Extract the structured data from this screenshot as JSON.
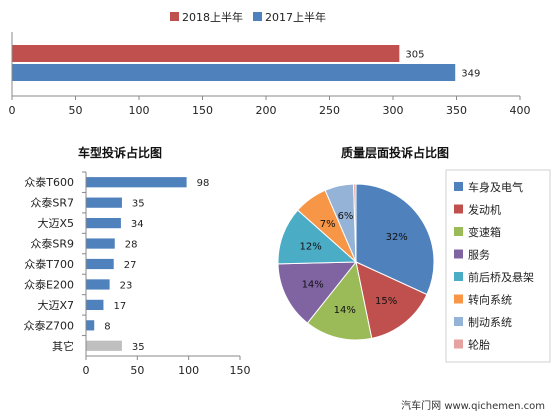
{
  "chart_data": [
    {
      "type": "bar",
      "orientation": "horizontal",
      "title": "",
      "categories": [
        ""
      ],
      "series": [
        {
          "name": "2018上半年",
          "values": [
            305
          ],
          "color": "#c0504d"
        },
        {
          "name": "2017上半年",
          "values": [
            349
          ],
          "color": "#4f81bd"
        }
      ],
      "xlim": [
        0,
        400
      ],
      "xticks": [
        "0",
        "50",
        "100",
        "150",
        "200",
        "250",
        "300",
        "350",
        "400"
      ],
      "legend": "top",
      "grid": false
    },
    {
      "type": "bar",
      "orientation": "horizontal",
      "title": "车型投诉占比图",
      "categories": [
        "众泰T600",
        "众泰SR7",
        "大迈X5",
        "众泰SR9",
        "众泰T700",
        "众泰E200",
        "大迈X7",
        "众泰Z700",
        "其它"
      ],
      "values": [
        98,
        35,
        34,
        28,
        27,
        23,
        17,
        8,
        35
      ],
      "colors": [
        "#4f81bd",
        "#4f81bd",
        "#4f81bd",
        "#4f81bd",
        "#4f81bd",
        "#4f81bd",
        "#4f81bd",
        "#4f81bd",
        "#bfbfbf"
      ],
      "xlim": [
        0,
        150
      ],
      "xticks": [
        "0",
        "50",
        "100",
        "150"
      ],
      "grid": false
    },
    {
      "type": "pie",
      "title": "质量层面投诉占比图",
      "labels": [
        "车身及电气",
        "发动机",
        "变速箱",
        "服务",
        "前后桥及悬架",
        "转向系统",
        "制动系统",
        "轮胎"
      ],
      "values": [
        32,
        15,
        14,
        14,
        12,
        7,
        6,
        0.5
      ],
      "display_labels": [
        "32%",
        "15%",
        "14%",
        "14%",
        "12%",
        "7%",
        "6%",
        ""
      ],
      "colors": [
        "#4f81bd",
        "#c0504d",
        "#9bbb59",
        "#8064a2",
        "#4bacc6",
        "#f79646",
        "#95b3d7",
        "#e6a1a1"
      ],
      "legend": "right"
    }
  ],
  "footer": {
    "watermark": "汽车门网 www.qichemen.com"
  }
}
